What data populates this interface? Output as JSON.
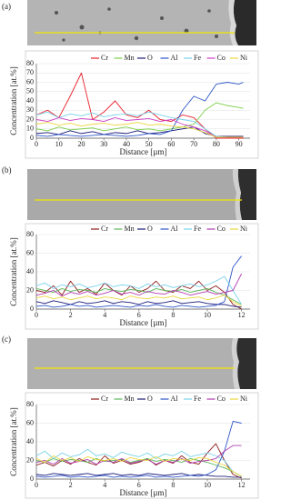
{
  "chart_data": [
    {
      "type": "line",
      "panel_label": "(a)",
      "xlabel": "Distance [µm]",
      "ylabel": "Concentration [at.%]",
      "x": [
        0,
        5,
        10,
        15,
        20,
        25,
        30,
        35,
        40,
        45,
        50,
        55,
        60,
        65,
        70,
        75,
        80,
        85,
        90,
        92
      ],
      "xlim": [
        0,
        95
      ],
      "xticks": [
        0,
        10,
        20,
        30,
        40,
        50,
        60,
        70,
        80,
        90
      ],
      "ylim": [
        0,
        80
      ],
      "yticks": [
        0,
        10,
        20,
        30,
        40,
        50,
        60,
        70,
        80
      ],
      "grid": true,
      "series": [
        {
          "name": "Cr",
          "color": "#e8202a",
          "values": [
            25,
            30,
            22,
            45,
            70,
            20,
            28,
            40,
            25,
            22,
            30,
            20,
            18,
            25,
            22,
            10,
            0,
            0,
            0,
            0
          ]
        },
        {
          "name": "Mn",
          "color": "#7ccf4a",
          "values": [
            10,
            8,
            12,
            9,
            10,
            11,
            8,
            10,
            12,
            9,
            10,
            8,
            10,
            12,
            15,
            30,
            38,
            35,
            33,
            32
          ]
        },
        {
          "name": "O",
          "color": "#1c1c7a",
          "values": [
            5,
            6,
            4,
            8,
            5,
            7,
            4,
            6,
            5,
            8,
            5,
            6,
            8,
            10,
            12,
            5,
            2,
            2,
            2,
            2
          ]
        },
        {
          "name": "Al",
          "color": "#2f55c8",
          "values": [
            3,
            2,
            4,
            3,
            2,
            3,
            4,
            3,
            2,
            3,
            5,
            4,
            8,
            30,
            45,
            40,
            58,
            60,
            58,
            60
          ]
        },
        {
          "name": "Fe",
          "color": "#78d2ea",
          "values": [
            25,
            28,
            22,
            26,
            24,
            27,
            23,
            25,
            26,
            24,
            28,
            25,
            22,
            20,
            18,
            10,
            2,
            1,
            1,
            1
          ]
        },
        {
          "name": "Co",
          "color": "#d040c8",
          "values": [
            20,
            18,
            22,
            19,
            21,
            20,
            18,
            22,
            19,
            20,
            21,
            18,
            20,
            15,
            12,
            8,
            1,
            1,
            1,
            1
          ]
        },
        {
          "name": "Ni",
          "color": "#ecd640",
          "values": [
            15,
            17,
            14,
            16,
            13,
            15,
            16,
            14,
            15,
            17,
            14,
            15,
            13,
            12,
            10,
            6,
            1,
            1,
            1,
            1
          ]
        }
      ]
    },
    {
      "type": "line",
      "panel_label": "(b)",
      "xlabel": "Distance [µm]",
      "ylabel": "Concentration [at.%]",
      "x": [
        0,
        0.5,
        1,
        1.5,
        2,
        2.5,
        3,
        3.5,
        4,
        4.5,
        5,
        5.5,
        6,
        6.5,
        7,
        7.5,
        8,
        8.5,
        9,
        9.5,
        10,
        10.5,
        11,
        11.5,
        12
      ],
      "xlim": [
        0,
        12.5
      ],
      "xticks": [
        0,
        2,
        4,
        6,
        8,
        10,
        12
      ],
      "ylim": [
        0,
        80
      ],
      "yticks": [
        0,
        20,
        40,
        60,
        80
      ],
      "grid": true,
      "series": [
        {
          "name": "Cr",
          "color": "#8e1c1c",
          "values": [
            20,
            18,
            25,
            15,
            30,
            18,
            22,
            16,
            28,
            20,
            15,
            25,
            18,
            22,
            30,
            20,
            18,
            25,
            22,
            30,
            20,
            25,
            18,
            5,
            0
          ]
        },
        {
          "name": "Mn",
          "color": "#5cb85c",
          "values": [
            22,
            20,
            18,
            22,
            19,
            21,
            20,
            18,
            22,
            20,
            19,
            21,
            20,
            18,
            22,
            20,
            19,
            21,
            18,
            20,
            22,
            18,
            15,
            10,
            5
          ]
        },
        {
          "name": "O",
          "color": "#1c1c7a",
          "values": [
            8,
            6,
            9,
            7,
            5,
            8,
            6,
            7,
            9,
            6,
            8,
            7,
            5,
            8,
            6,
            7,
            9,
            6,
            7,
            8,
            6,
            5,
            5,
            3,
            2
          ]
        },
        {
          "name": "Al",
          "color": "#2f55c8",
          "values": [
            3,
            4,
            2,
            3,
            5,
            3,
            4,
            2,
            3,
            4,
            3,
            2,
            4,
            3,
            5,
            3,
            2,
            4,
            3,
            2,
            3,
            4,
            8,
            45,
            57
          ]
        },
        {
          "name": "Fe",
          "color": "#78d2ea",
          "values": [
            25,
            28,
            22,
            26,
            24,
            27,
            23,
            25,
            28,
            24,
            26,
            25,
            22,
            27,
            24,
            26,
            23,
            25,
            27,
            24,
            26,
            30,
            35,
            20,
            5
          ]
        },
        {
          "name": "Co",
          "color": "#b03cb0",
          "values": [
            15,
            17,
            20,
            14,
            18,
            16,
            19,
            15,
            17,
            20,
            16,
            18,
            15,
            19,
            17,
            16,
            20,
            18,
            15,
            17,
            19,
            16,
            18,
            20,
            38
          ]
        },
        {
          "name": "Ni",
          "color": "#ecd640",
          "values": [
            12,
            14,
            11,
            13,
            10,
            12,
            14,
            11,
            13,
            12,
            10,
            14,
            12,
            11,
            13,
            12,
            14,
            11,
            12,
            13,
            10,
            12,
            15,
            8,
            3
          ]
        }
      ]
    },
    {
      "type": "line",
      "panel_label": "(c)",
      "xlabel": "Distance [µm]",
      "ylabel": "Concentration [at.%]",
      "x": [
        0,
        0.5,
        1,
        1.5,
        2,
        2.5,
        3,
        3.5,
        4,
        4.5,
        5,
        5.5,
        6,
        6.5,
        7,
        7.5,
        8,
        8.5,
        9,
        9.5,
        10,
        10.5,
        11,
        11.5,
        12
      ],
      "xlim": [
        0,
        12.5
      ],
      "xticks": [
        0,
        2,
        4,
        6,
        8,
        10,
        12
      ],
      "ylim": [
        0,
        80
      ],
      "yticks": [
        0,
        20,
        40,
        60,
        80
      ],
      "grid": true,
      "series": [
        {
          "name": "Cr",
          "color": "#8e1c1c",
          "values": [
            15,
            18,
            14,
            20,
            16,
            22,
            18,
            15,
            25,
            17,
            20,
            16,
            18,
            22,
            15,
            20,
            17,
            25,
            18,
            16,
            28,
            38,
            20,
            5,
            1
          ]
        },
        {
          "name": "Mn",
          "color": "#5cb85c",
          "values": [
            20,
            18,
            22,
            19,
            21,
            20,
            18,
            22,
            19,
            20,
            21,
            18,
            20,
            22,
            19,
            21,
            20,
            18,
            22,
            20,
            18,
            15,
            12,
            8,
            3
          ]
        },
        {
          "name": "O",
          "color": "#1c1c7a",
          "values": [
            5,
            4,
            6,
            5,
            4,
            5,
            6,
            4,
            5,
            6,
            4,
            5,
            4,
            6,
            5,
            4,
            5,
            6,
            4,
            5,
            4,
            3,
            3,
            2,
            2
          ]
        },
        {
          "name": "Al",
          "color": "#2f55c8",
          "values": [
            3,
            2,
            3,
            4,
            2,
            3,
            2,
            3,
            4,
            2,
            3,
            2,
            3,
            4,
            2,
            3,
            2,
            3,
            4,
            3,
            5,
            10,
            30,
            62,
            60
          ]
        },
        {
          "name": "Fe",
          "color": "#78d2ea",
          "values": [
            25,
            30,
            22,
            28,
            24,
            26,
            32,
            25,
            27,
            23,
            29,
            26,
            24,
            28,
            22,
            27,
            25,
            30,
            24,
            26,
            28,
            25,
            20,
            8,
            3
          ]
        },
        {
          "name": "Co",
          "color": "#b03cb0",
          "values": [
            18,
            20,
            16,
            22,
            17,
            19,
            21,
            16,
            20,
            18,
            22,
            17,
            19,
            21,
            16,
            20,
            18,
            22,
            17,
            19,
            20,
            22,
            30,
            36,
            36
          ]
        },
        {
          "name": "Ni",
          "color": "#ecd640",
          "values": [
            22,
            18,
            25,
            20,
            23,
            19,
            24,
            21,
            20,
            22,
            19,
            23,
            21,
            20,
            24,
            19,
            22,
            21,
            20,
            23,
            22,
            18,
            15,
            8,
            3
          ]
        }
      ]
    }
  ]
}
